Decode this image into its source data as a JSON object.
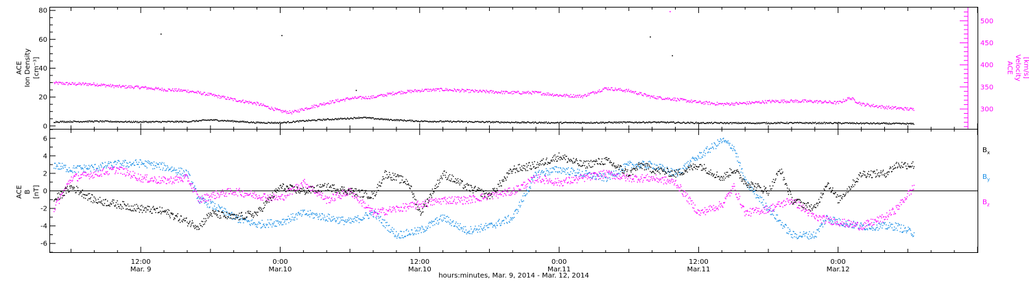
{
  "colors": {
    "black": "#000000",
    "magenta": "#ff00ff",
    "blue": "#1a8fe6",
    "axis": "#000000"
  },
  "top_panel": {
    "left_label_lines": [
      "ACE",
      "Ion Density",
      "[cm⁻³]"
    ],
    "right_label_lines": [
      "ACE",
      "Velocity",
      "[km/s]"
    ]
  },
  "bottom_panel": {
    "left_label_lines": [
      "ACE",
      "B",
      "[nT]"
    ],
    "legend": [
      {
        "label": "B",
        "sub": "x",
        "color": "#000000"
      },
      {
        "label": "B",
        "sub": "y",
        "color": "#1a8fe6"
      },
      {
        "label": "B",
        "sub": "z",
        "color": "#ff00ff"
      }
    ]
  },
  "x_axis": {
    "title": "hours:minutes, Mar.  9, 2014 - Mar. 12, 2014",
    "ticks": [
      {
        "hour": 12,
        "time": "12:00",
        "date": "Mar. 9"
      },
      {
        "hour": 24,
        "time": "0:00",
        "date": "Mar.10"
      },
      {
        "hour": 36,
        "time": "12:00",
        "date": "Mar.10"
      },
      {
        "hour": 48,
        "time": "0:00",
        "date": "Mar.11"
      },
      {
        "hour": 60,
        "time": "12:00",
        "date": "Mar.11"
      },
      {
        "hour": 72,
        "time": "0:00",
        "date": "Mar.12"
      }
    ]
  },
  "chart_data": [
    {
      "type": "scatter",
      "xlim_hours_from_mar8_0000": [
        4.2,
        84.0
      ],
      "y_left": {
        "label": "Ion Density [cm-3]",
        "ylim": [
          -2,
          82
        ],
        "ticks": [
          0,
          20,
          40,
          60,
          80
        ]
      },
      "y_right": {
        "label": "Velocity [km/s]",
        "ylim": [
          255,
          530
        ],
        "ticks": [
          300,
          350,
          400,
          450,
          500
        ]
      },
      "series": [
        {
          "name": "Ion Density",
          "axis": "left",
          "color": "#000000",
          "points": [
            [
              4.5,
              3.2
            ],
            [
              8,
              3.5
            ],
            [
              12,
              3.1
            ],
            [
              16,
              3.3
            ],
            [
              18,
              4.5
            ],
            [
              20,
              3.6
            ],
            [
              22,
              2.6
            ],
            [
              24,
              2.5
            ],
            [
              26,
              3.8
            ],
            [
              28,
              4.8
            ],
            [
              30,
              5.6
            ],
            [
              31,
              6.2
            ],
            [
              33,
              4.8
            ],
            [
              36,
              3.6
            ],
            [
              40,
              3.2
            ],
            [
              44,
              2.8
            ],
            [
              48,
              2.5
            ],
            [
              52,
              2.7
            ],
            [
              56,
              2.9
            ],
            [
              60,
              2.4
            ],
            [
              64,
              2.3
            ],
            [
              68,
              2.4
            ],
            [
              72,
              2.3
            ],
            [
              76,
              2.0
            ],
            [
              78.5,
              1.8
            ]
          ],
          "outliers": [
            [
              13.7,
              64
            ],
            [
              24.1,
              63
            ],
            [
              55.8,
              62
            ],
            [
              57.7,
              49
            ],
            [
              30.5,
              25
            ]
          ]
        },
        {
          "name": "Velocity",
          "axis": "right",
          "color": "#ff00ff",
          "points": [
            [
              4.5,
              360
            ],
            [
              6,
              358
            ],
            [
              8,
              357
            ],
            [
              10,
              352
            ],
            [
              12,
              350
            ],
            [
              14,
              345
            ],
            [
              16,
              342
            ],
            [
              18,
              333
            ],
            [
              20,
              322
            ],
            [
              22,
              313
            ],
            [
              24,
              296
            ],
            [
              25,
              293
            ],
            [
              26,
              301
            ],
            [
              28,
              315
            ],
            [
              30,
              325
            ],
            [
              32,
              328
            ],
            [
              34,
              338
            ],
            [
              36,
              343
            ],
            [
              38,
              345
            ],
            [
              40,
              342
            ],
            [
              42,
              340
            ],
            [
              44,
              338
            ],
            [
              46,
              338
            ],
            [
              48,
              332
            ],
            [
              50,
              330
            ],
            [
              52,
              348
            ],
            [
              54,
              342
            ],
            [
              56,
              328
            ],
            [
              58,
              323
            ],
            [
              60,
              316
            ],
            [
              62,
              312
            ],
            [
              64,
              314
            ],
            [
              66,
              318
            ],
            [
              68,
              319
            ],
            [
              70,
              318
            ],
            [
              72,
              315
            ],
            [
              73,
              326
            ],
            [
              74,
              312
            ],
            [
              76,
              305
            ],
            [
              78.5,
              300
            ]
          ],
          "outliers": [
            [
              57.5,
              522
            ]
          ]
        }
      ]
    },
    {
      "type": "scatter",
      "xlim_hours_from_mar8_0000": [
        4.2,
        84.0
      ],
      "ylim": [
        -7,
        7
      ],
      "ticks": [
        -6,
        -4,
        -2,
        0,
        2,
        4,
        6
      ],
      "zero_line": true,
      "series": [
        {
          "name": "Bx",
          "color": "#000000",
          "points": [
            [
              4.5,
              -1
            ],
            [
              6,
              0.5
            ],
            [
              8,
              -1
            ],
            [
              10,
              -1.5
            ],
            [
              12,
              -2
            ],
            [
              14,
              -2.3
            ],
            [
              16,
              -3.5
            ],
            [
              17,
              -4
            ],
            [
              18,
              -2.5
            ],
            [
              20,
              -3
            ],
            [
              22,
              -2.5
            ],
            [
              24,
              0.5
            ],
            [
              26,
              0
            ],
            [
              28,
              0.5
            ],
            [
              30,
              0
            ],
            [
              32,
              -0.5
            ],
            [
              33,
              2
            ],
            [
              35,
              1
            ],
            [
              36,
              -2.5
            ],
            [
              38,
              2
            ],
            [
              40,
              0.5
            ],
            [
              42,
              -0.5
            ],
            [
              44,
              2.5
            ],
            [
              46,
              3
            ],
            [
              48,
              4
            ],
            [
              50,
              3
            ],
            [
              52,
              3.5
            ],
            [
              54,
              2
            ],
            [
              55,
              3
            ],
            [
              56,
              2.5
            ],
            [
              58,
              2
            ],
            [
              60,
              3
            ],
            [
              62,
              1.5
            ],
            [
              63,
              2.5
            ],
            [
              64,
              1
            ],
            [
              66,
              0
            ],
            [
              67,
              2.5
            ],
            [
              68,
              -1
            ],
            [
              70,
              -2
            ],
            [
              71,
              1
            ],
            [
              72,
              -1
            ],
            [
              74,
              2
            ],
            [
              76,
              2
            ],
            [
              77,
              3
            ],
            [
              78.5,
              3
            ]
          ]
        },
        {
          "name": "By",
          "color": "#1a8fe6",
          "points": [
            [
              4.5,
              3
            ],
            [
              6,
              2.5
            ],
            [
              8,
              2.7
            ],
            [
              10,
              3.1
            ],
            [
              12,
              3.2
            ],
            [
              14,
              2.8
            ],
            [
              16,
              2
            ],
            [
              17,
              -1
            ],
            [
              18,
              -1.5
            ],
            [
              20,
              -3
            ],
            [
              22,
              -3.8
            ],
            [
              24,
              -3.5
            ],
            [
              26,
              -2.5
            ],
            [
              28,
              -3
            ],
            [
              30,
              -3.5
            ],
            [
              32,
              -2.5
            ],
            [
              34,
              -5
            ],
            [
              36,
              -4.5
            ],
            [
              38,
              -3
            ],
            [
              40,
              -4.5
            ],
            [
              42,
              -4
            ],
            [
              44,
              -3
            ],
            [
              46,
              2
            ],
            [
              48,
              2.5
            ],
            [
              50,
              2
            ],
            [
              52,
              1.5
            ],
            [
              54,
              3
            ],
            [
              56,
              3
            ],
            [
              58,
              2
            ],
            [
              60,
              4
            ],
            [
              62,
              5.8
            ],
            [
              63,
              5
            ],
            [
              64,
              1
            ],
            [
              66,
              -2
            ],
            [
              68,
              -5
            ],
            [
              70,
              -5
            ],
            [
              71,
              -3
            ],
            [
              72,
              -3.5
            ],
            [
              74,
              -4
            ],
            [
              76,
              -4
            ],
            [
              77,
              -4
            ],
            [
              78.5,
              -4.8
            ]
          ]
        },
        {
          "name": "Bz",
          "color": "#ff00ff",
          "points": [
            [
              4.5,
              -2
            ],
            [
              6,
              1.5
            ],
            [
              8,
              2
            ],
            [
              10,
              2.5
            ],
            [
              12,
              1.5
            ],
            [
              14,
              1.2
            ],
            [
              16,
              1.5
            ],
            [
              17,
              -1
            ],
            [
              18,
              -0.5
            ],
            [
              20,
              0
            ],
            [
              22,
              -0.5
            ],
            [
              24,
              -0.8
            ],
            [
              26,
              1
            ],
            [
              28,
              -1
            ],
            [
              30,
              0
            ],
            [
              32,
              -2.5
            ],
            [
              34,
              -2
            ],
            [
              36,
              -1.5
            ],
            [
              38,
              -1
            ],
            [
              40,
              -1
            ],
            [
              42,
              -0.5
            ],
            [
              44,
              0
            ],
            [
              46,
              1.5
            ],
            [
              48,
              1
            ],
            [
              50,
              1.5
            ],
            [
              52,
              2
            ],
            [
              54,
              1.5
            ],
            [
              56,
              1.5
            ],
            [
              58,
              1
            ],
            [
              60,
              -2.5
            ],
            [
              62,
              -1.5
            ],
            [
              63,
              0.5
            ],
            [
              64,
              -2.5
            ],
            [
              66,
              -2
            ],
            [
              68,
              -1
            ],
            [
              70,
              -3
            ],
            [
              72,
              -3.5
            ],
            [
              74,
              -4
            ],
            [
              76,
              -3
            ],
            [
              77,
              -2
            ],
            [
              78.5,
              0.5
            ]
          ]
        }
      ]
    }
  ]
}
